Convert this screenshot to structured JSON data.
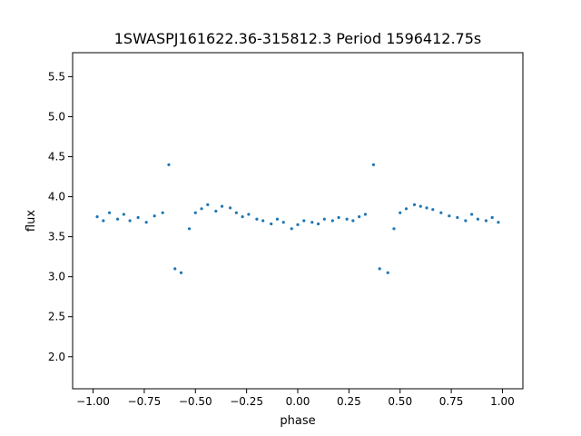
{
  "chart_data": {
    "type": "scatter",
    "title": "1SWASPJ161622.36-315812.3 Period 1596412.75s",
    "xlabel": "phase",
    "ylabel": "flux",
    "xlim": [
      -1.1,
      1.1
    ],
    "ylim": [
      1.6,
      5.8
    ],
    "xticks": [
      -1.0,
      -0.75,
      -0.5,
      -0.25,
      0.0,
      0.25,
      0.5,
      0.75,
      1.0
    ],
    "xtick_labels": [
      "−1.00",
      "−0.75",
      "−0.50",
      "−0.25",
      "0.00",
      "0.25",
      "0.50",
      "0.75",
      "1.00"
    ],
    "yticks": [
      2.0,
      2.5,
      3.0,
      3.5,
      4.0,
      4.5,
      5.0,
      5.5
    ],
    "ytick_labels": [
      "2.0",
      "2.5",
      "3.0",
      "3.5",
      "4.0",
      "4.5",
      "5.0",
      "5.5"
    ],
    "grid": false,
    "marker_color": "#1f77b4",
    "series": [
      {
        "x": [
          -0.98,
          -0.95,
          -0.92,
          -0.88,
          -0.85,
          -0.82,
          -0.78,
          -0.74,
          -0.7,
          -0.66,
          -0.63,
          -0.6,
          -0.57,
          -0.53,
          -0.5,
          -0.47,
          -0.44,
          -0.4,
          -0.37,
          -0.33,
          -0.3,
          -0.27,
          -0.24,
          -0.2,
          -0.17,
          -0.13,
          -0.1,
          -0.07,
          -0.03,
          0.0,
          0.03,
          0.07,
          0.1,
          0.13,
          0.17,
          0.2,
          0.24,
          0.27,
          0.3,
          0.33,
          0.37,
          0.4,
          0.44,
          0.47,
          0.5,
          0.53,
          0.57,
          0.6,
          0.63,
          0.66,
          0.7,
          0.74,
          0.78,
          0.82,
          0.85,
          0.88,
          0.92,
          0.95,
          0.98
        ],
        "y": [
          3.75,
          3.7,
          3.8,
          3.72,
          3.78,
          3.7,
          3.74,
          3.68,
          3.76,
          3.8,
          4.4,
          3.1,
          3.05,
          3.6,
          3.8,
          3.85,
          3.9,
          3.82,
          3.88,
          3.86,
          3.8,
          3.75,
          3.78,
          3.72,
          3.7,
          3.66,
          3.72,
          3.68,
          3.6,
          3.65,
          3.7,
          3.68,
          3.66,
          3.72,
          3.7,
          3.74,
          3.72,
          3.7,
          3.75,
          3.78,
          4.4,
          3.1,
          3.05,
          3.6,
          3.8,
          3.85,
          3.9,
          3.88,
          3.86,
          3.84,
          3.8,
          3.76,
          3.74,
          3.7,
          3.78,
          3.72,
          3.7,
          3.74,
          3.68
        ]
      }
    ]
  }
}
